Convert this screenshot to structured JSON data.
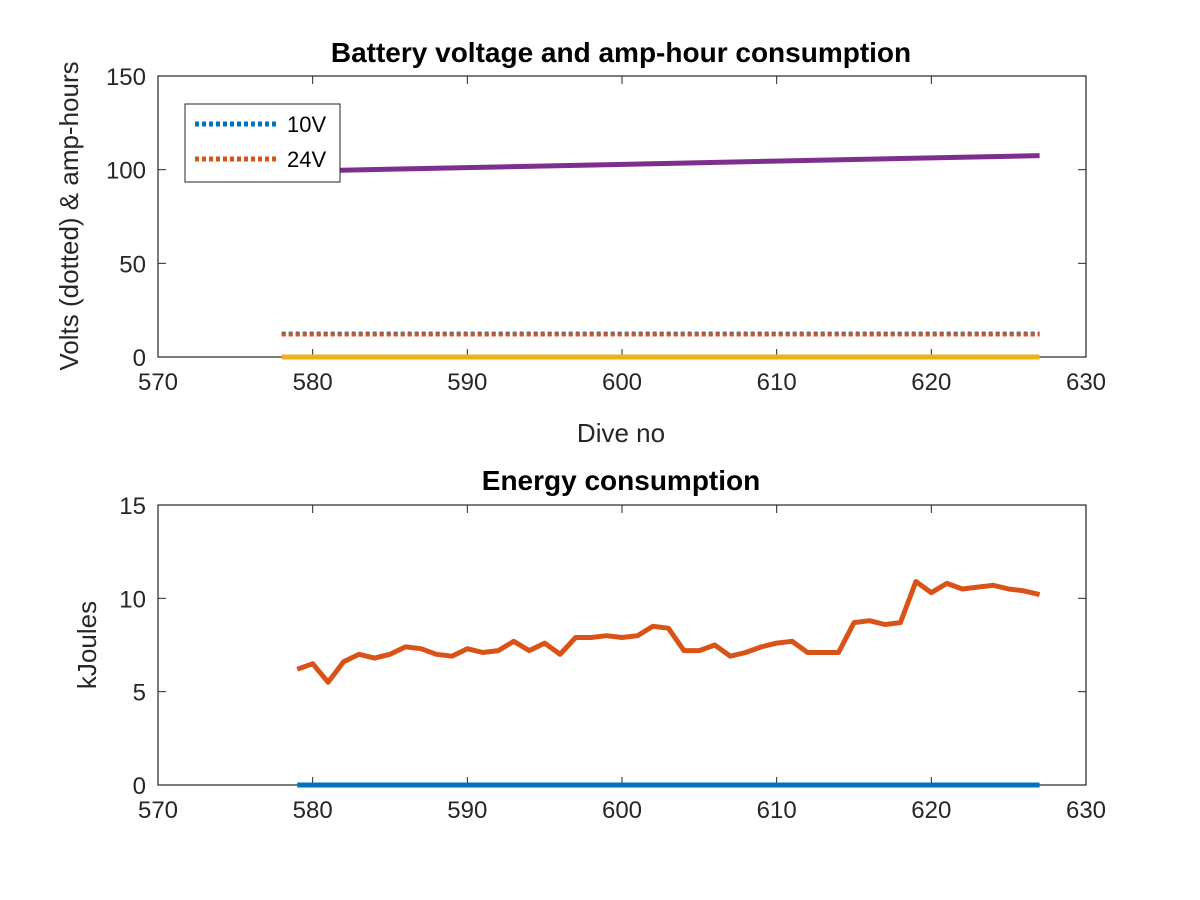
{
  "chart_data": [
    {
      "type": "line",
      "title": "Battery voltage and amp-hour consumption",
      "xlabel": "Dive no",
      "ylabel": "Volts (dotted) & amp-hours",
      "xlim": [
        570,
        630
      ],
      "ylim": [
        0,
        150
      ],
      "xticks": [
        "570",
        "580",
        "590",
        "600",
        "610",
        "620",
        "630"
      ],
      "yticks": [
        "0",
        "50",
        "100",
        "150"
      ],
      "legend": {
        "placement": "top-left",
        "entries": [
          "10V",
          "24V"
        ]
      },
      "series": [
        {
          "name": "10V",
          "color": "#0072BD",
          "style": "dotted",
          "x": [
            578,
            627
          ],
          "y": [
            12.5,
            12.5
          ]
        },
        {
          "name": "24V",
          "color": "#D95319",
          "style": "dotted",
          "x": [
            578,
            627
          ],
          "y": [
            12,
            12
          ]
        },
        {
          "color": "#7E2F8E",
          "style": "solid",
          "x": [
            578,
            627
          ],
          "y": [
            99,
            107.5
          ]
        },
        {
          "color": "#EDB120",
          "style": "solid",
          "x": [
            578,
            627
          ],
          "y": [
            0,
            0
          ]
        }
      ]
    },
    {
      "type": "line",
      "title": "Energy consumption",
      "xlabel": "",
      "ylabel": "kJoules",
      "xlim": [
        570,
        630
      ],
      "ylim": [
        0,
        15
      ],
      "xticks": [
        "570",
        "580",
        "590",
        "600",
        "610",
        "620",
        "630"
      ],
      "yticks": [
        "0",
        "5",
        "10",
        "15"
      ],
      "series": [
        {
          "color": "#D95319",
          "style": "solid",
          "x": [
            579,
            580,
            581,
            582,
            583,
            584,
            585,
            586,
            587,
            588,
            589,
            590,
            591,
            592,
            593,
            594,
            595,
            596,
            597,
            598,
            599,
            600,
            601,
            602,
            603,
            604,
            605,
            606,
            607,
            608,
            609,
            610,
            611,
            612,
            613,
            614,
            615,
            616,
            617,
            618,
            619,
            620,
            621,
            622,
            623,
            624,
            625,
            626,
            627
          ],
          "y": [
            6.2,
            6.5,
            5.5,
            6.6,
            7.0,
            6.8,
            7.0,
            7.4,
            7.3,
            7.0,
            6.9,
            7.3,
            7.1,
            7.2,
            7.7,
            7.2,
            7.6,
            7.0,
            7.9,
            7.9,
            8.0,
            7.9,
            8.0,
            8.5,
            8.4,
            7.2,
            7.2,
            7.5,
            6.9,
            7.1,
            7.4,
            7.6,
            7.7,
            7.1,
            7.1,
            7.1,
            8.7,
            8.8,
            8.6,
            8.7,
            10.9,
            10.3,
            10.8,
            10.5,
            10.6,
            10.7,
            10.5,
            10.4,
            10.2
          ]
        },
        {
          "color": "#0072BD",
          "style": "solid",
          "x": [
            579,
            627
          ],
          "y": [
            0,
            0
          ]
        }
      ]
    }
  ]
}
